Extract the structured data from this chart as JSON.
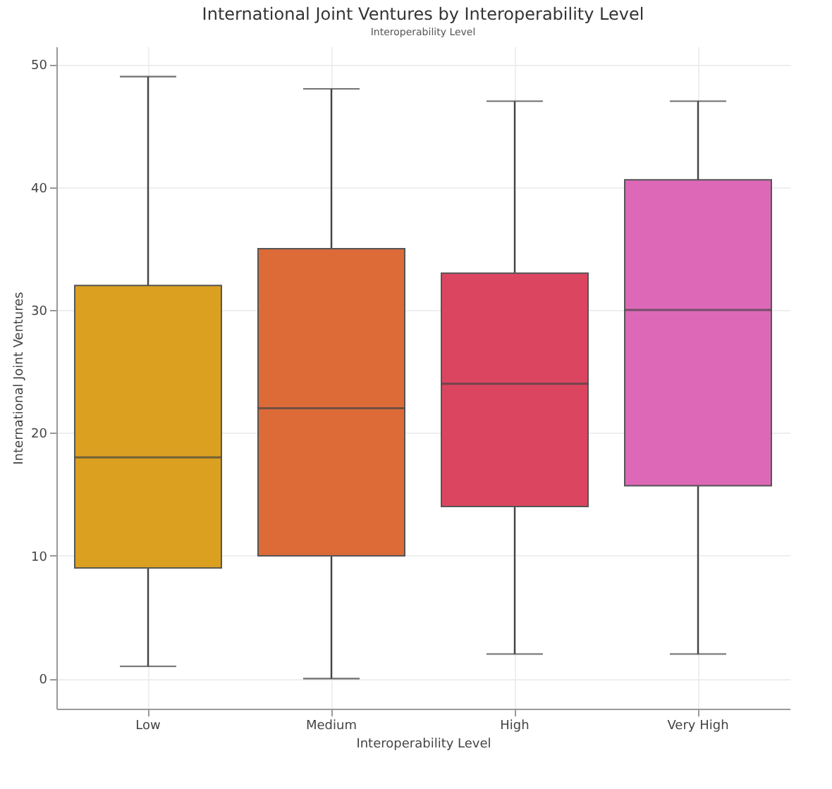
{
  "chart_data": {
    "type": "box",
    "title": "International Joint Ventures by Interoperability Level",
    "annotations": [
      "Interoperability Level"
    ],
    "xlabel": "Interoperability Level",
    "ylabel": "International Joint Ventures",
    "categories": [
      "Low",
      "Medium",
      "High",
      "Very High"
    ],
    "colors": [
      "#dba020",
      "#dc6b38",
      "#dc4560",
      "#dd68b8"
    ],
    "boxes": [
      {
        "low": 1,
        "q1": 9,
        "median": 18,
        "q3": 32,
        "high": 49
      },
      {
        "low": 0,
        "q1": 10,
        "median": 22,
        "q3": 35,
        "high": 48
      },
      {
        "low": 2,
        "q1": 14,
        "median": 24,
        "q3": 33,
        "high": 47
      },
      {
        "low": 2,
        "q1": 15.7,
        "median": 30,
        "q3": 40.6,
        "high": 47
      }
    ],
    "ylim": [
      -2.45,
      51.45
    ],
    "yticks": [
      0,
      10,
      20,
      30,
      40,
      50
    ],
    "grid": true
  }
}
